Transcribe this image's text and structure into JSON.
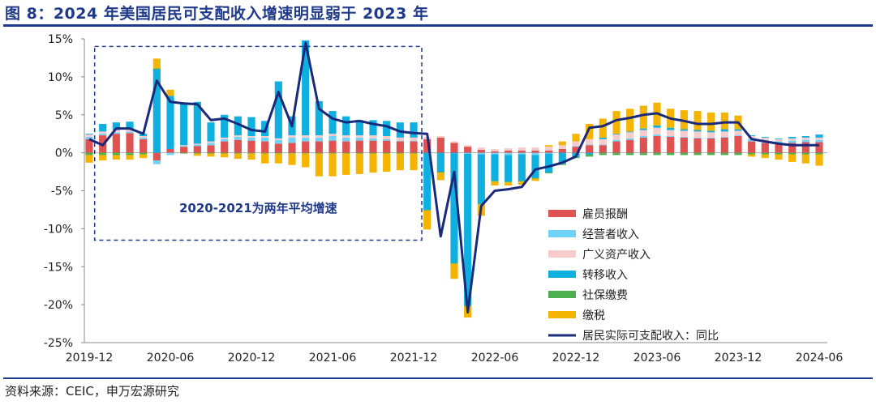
{
  "page": {
    "title": "图 8：2024 年美国居民可支配收入增速明显弱于 2023 年",
    "source": "资料来源：CEIC，申万宏源研究"
  },
  "colors": {
    "title": "#1f3a8a",
    "comp": "#e05252",
    "oper": "#6fd3f7",
    "asset": "#f9cccc",
    "transfer": "#0fb0e0",
    "social": "#4caf50",
    "tax": "#f5b400",
    "line": "#1a2a7a"
  },
  "chart_data": {
    "type": "bar",
    "stacked": true,
    "ylim": [
      -25,
      15
    ],
    "yticks": [
      -25,
      -20,
      -15,
      -10,
      -5,
      0,
      5,
      10,
      15
    ],
    "ytick_format": "percent",
    "xlabels": [
      "2019-12",
      "2020-06",
      "2020-12",
      "2021-06",
      "2021-12",
      "2022-06",
      "2022-12",
      "2023-06",
      "2023-12",
      "2024-06"
    ],
    "xlabel_index": [
      0,
      6,
      12,
      18,
      24,
      30,
      36,
      42,
      48,
      54
    ],
    "x": [
      "2019-12",
      "2020-01",
      "2020-02",
      "2020-03",
      "2020-04",
      "2020-05",
      "2020-06",
      "2020-07",
      "2020-08",
      "2020-09",
      "2020-10",
      "2020-11",
      "2020-12",
      "2021-01",
      "2021-02",
      "2021-03",
      "2021-04",
      "2021-05",
      "2021-06",
      "2021-07",
      "2021-08",
      "2021-09",
      "2021-10",
      "2021-11",
      "2021-12",
      "2022-01",
      "2022-02",
      "2022-03",
      "2022-04",
      "2022-05",
      "2022-06",
      "2022-07",
      "2022-08",
      "2022-09",
      "2022-10",
      "2022-11",
      "2022-12",
      "2023-01",
      "2023-02",
      "2023-03",
      "2023-04",
      "2023-05",
      "2023-06",
      "2023-07",
      "2023-08",
      "2023-09",
      "2023-10",
      "2023-11",
      "2023-12",
      "2024-01",
      "2024-02",
      "2024-03",
      "2024-04",
      "2024-05",
      "2024-06"
    ],
    "annotation": {
      "text": "2020-2021为两年平均增速",
      "x_from": "2020-01",
      "x_to": "2021-12",
      "y_from": -11.5,
      "y_to": 14
    },
    "series": [
      {
        "name": "雇员报酬",
        "key": "comp",
        "kind": "bar",
        "values": [
          1.8,
          2.3,
          2.5,
          2.6,
          1.8,
          -1.0,
          0.5,
          0.8,
          0.9,
          1.0,
          1.5,
          1.7,
          1.6,
          1.5,
          1.2,
          1.3,
          1.5,
          1.5,
          1.6,
          1.5,
          1.6,
          1.6,
          1.6,
          1.5,
          1.5,
          1.8,
          2.0,
          1.3,
          0.8,
          0.4,
          0.2,
          0.3,
          0.3,
          0.3,
          0.3,
          0.5,
          0.8,
          1.0,
          1.0,
          1.5,
          1.7,
          2.0,
          2.2,
          2.1,
          2.0,
          1.9,
          1.9,
          2.0,
          2.2,
          1.5,
          1.3,
          1.2,
          1.3,
          1.4,
          1.4
        ]
      },
      {
        "name": "经营者收入",
        "key": "oper",
        "kind": "bar",
        "values": [
          0.3,
          0.2,
          0.2,
          0.2,
          0.2,
          -0.5,
          -0.3,
          0.1,
          0.2,
          0.3,
          0.3,
          0.4,
          0.4,
          0.5,
          0.5,
          0.7,
          0.5,
          0.5,
          0.6,
          0.5,
          0.4,
          0.3,
          0.2,
          0.1,
          0.1,
          0.0,
          0.0,
          0.0,
          -0.1,
          -0.2,
          -0.2,
          -0.3,
          -0.2,
          -0.3,
          -0.1,
          0.0,
          0.1,
          0.1,
          0.1,
          0.2,
          0.2,
          0.2,
          0.2,
          0.1,
          0.1,
          0.1,
          0.1,
          0.1,
          0.1,
          0.3,
          0.3,
          0.3,
          0.3,
          0.3,
          0.3
        ]
      },
      {
        "name": "广义资产收入",
        "key": "asset",
        "kind": "bar",
        "values": [
          0.3,
          0.3,
          0.3,
          0.3,
          0.2,
          0.0,
          0.0,
          0.1,
          0.1,
          0.2,
          0.2,
          0.2,
          0.2,
          0.2,
          0.2,
          0.3,
          0.3,
          0.3,
          0.3,
          0.3,
          0.3,
          0.4,
          0.4,
          0.4,
          0.4,
          0.3,
          0.2,
          0.2,
          0.2,
          0.3,
          0.3,
          0.3,
          0.4,
          0.4,
          0.5,
          0.5,
          0.6,
          0.7,
          0.7,
          0.7,
          0.8,
          0.8,
          0.9,
          0.8,
          0.8,
          0.8,
          0.7,
          0.7,
          0.6,
          0.4,
          0.4,
          0.3,
          0.3,
          0.3,
          0.3
        ]
      },
      {
        "name": "转移收入",
        "key": "transfer",
        "kind": "bar",
        "values": [
          0.1,
          1.0,
          1.0,
          1.0,
          0.3,
          11.0,
          7.0,
          5.5,
          5.5,
          2.5,
          3.0,
          2.5,
          2.5,
          2.0,
          7.5,
          2.5,
          12.5,
          4.5,
          3.0,
          2.5,
          2.0,
          2.0,
          2.0,
          2.0,
          2.0,
          -7.5,
          -2.5,
          -14.5,
          -20.0,
          -6.5,
          -3.5,
          -3.5,
          -3.5,
          -3.0,
          -2.5,
          -1.5,
          -0.5,
          -0.2,
          0.2,
          0.1,
          0.1,
          0.2,
          0.3,
          0.3,
          0.2,
          0.2,
          0.2,
          0.3,
          0.2,
          0.1,
          0.1,
          0.1,
          0.2,
          0.2,
          0.4
        ]
      },
      {
        "name": "社保缴费",
        "key": "social",
        "kind": "bar",
        "values": [
          -0.3,
          -0.3,
          -0.3,
          -0.3,
          -0.2,
          0.1,
          0.0,
          -0.1,
          -0.1,
          -0.1,
          -0.1,
          -0.1,
          -0.1,
          -0.1,
          -0.1,
          -0.1,
          -0.1,
          -0.1,
          -0.1,
          -0.1,
          -0.1,
          -0.1,
          -0.1,
          -0.1,
          -0.1,
          -0.1,
          -0.1,
          -0.1,
          -0.1,
          -0.1,
          -0.1,
          -0.1,
          -0.1,
          -0.1,
          -0.1,
          -0.1,
          -0.2,
          -0.3,
          -0.3,
          -0.3,
          -0.3,
          -0.3,
          -0.3,
          -0.3,
          -0.3,
          -0.3,
          -0.3,
          -0.3,
          -0.3,
          -0.2,
          -0.2,
          -0.2,
          -0.2,
          -0.2,
          -0.2
        ]
      },
      {
        "name": "缴税",
        "key": "tax",
        "kind": "bar",
        "values": [
          -1.0,
          -0.7,
          -0.6,
          -0.6,
          -0.5,
          1.3,
          0.8,
          0.0,
          -0.3,
          -0.4,
          -0.5,
          -0.7,
          -0.8,
          -1.3,
          -1.3,
          -1.5,
          -1.8,
          -3.0,
          -3.0,
          -2.8,
          -2.7,
          -2.5,
          -2.4,
          -2.2,
          -2.2,
          -2.5,
          -1.0,
          -2.0,
          -1.5,
          -1.5,
          -0.5,
          -0.4,
          -0.4,
          -0.3,
          0.2,
          0.5,
          1.0,
          2.0,
          2.5,
          3.0,
          3.0,
          3.0,
          3.0,
          2.5,
          2.5,
          2.5,
          2.4,
          2.2,
          1.8,
          -0.3,
          -0.5,
          -0.7,
          -1.0,
          -1.2,
          -1.5
        ]
      },
      {
        "name": "居民实际可支配收入：同比",
        "key": "line",
        "kind": "line",
        "values": [
          1.8,
          1.0,
          3.2,
          3.2,
          2.5,
          9.5,
          6.7,
          6.5,
          6.4,
          4.3,
          4.5,
          3.8,
          3.0,
          2.8,
          8.0,
          3.5,
          14.5,
          5.8,
          4.5,
          4.0,
          4.2,
          3.8,
          3.5,
          2.8,
          2.6,
          2.5,
          -11.0,
          -2.5,
          -21.0,
          -7.0,
          -5.0,
          -4.8,
          -4.5,
          -2.2,
          -1.8,
          -1.3,
          -0.5,
          3.3,
          3.5,
          4.3,
          4.6,
          5.0,
          5.2,
          4.5,
          4.2,
          3.8,
          3.8,
          4.0,
          4.0,
          1.8,
          1.5,
          1.2,
          1.0,
          1.0,
          1.0
        ]
      }
    ]
  }
}
